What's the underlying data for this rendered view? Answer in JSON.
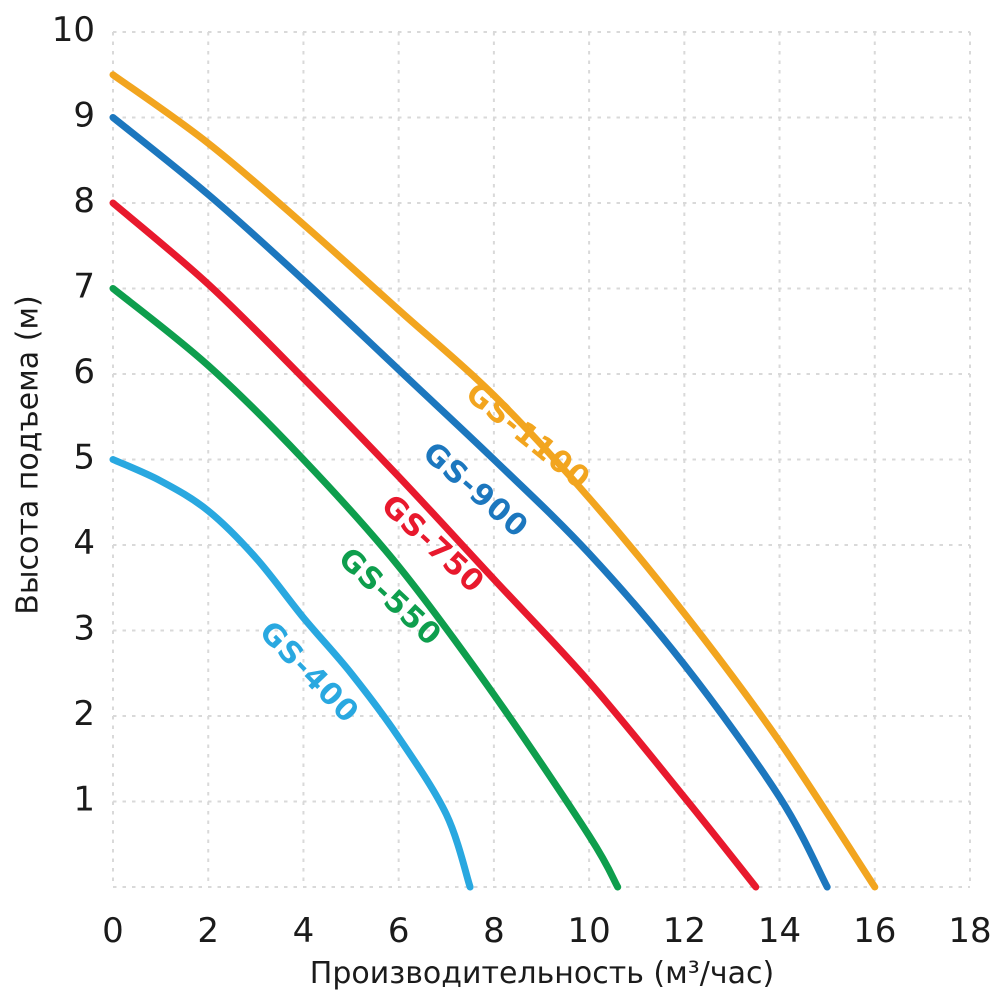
{
  "chart_data": {
    "type": "line",
    "title": "",
    "xlabel": "Производительность (м³/час)",
    "ylabel": "Высота подъема (м)",
    "xlim": [
      0,
      18
    ],
    "ylim": [
      0,
      10
    ],
    "xticks": [
      0,
      2,
      4,
      6,
      8,
      10,
      12,
      14,
      16,
      18
    ],
    "yticks": [
      1,
      2,
      3,
      4,
      5,
      6,
      7,
      8,
      9,
      10
    ],
    "grid": "dashed",
    "grid_color": "#d9d9d9",
    "text_color": "#1b1b1b",
    "background_color": "#ffffff",
    "legend_position": "inline-curve-labels",
    "series": [
      {
        "name": "GS-1100",
        "label": "GS-1100",
        "color": "#f2a51f",
        "points": [
          [
            0,
            9.5
          ],
          [
            2,
            8.7
          ],
          [
            4,
            7.75
          ],
          [
            6,
            6.75
          ],
          [
            8,
            5.75
          ],
          [
            10,
            4.55
          ],
          [
            12,
            3.2
          ],
          [
            14,
            1.7
          ],
          [
            16,
            0
          ]
        ],
        "label_pos": [
          8.7,
          5.26
        ],
        "label_angle": 39
      },
      {
        "name": "GS-900",
        "label": "GS-900",
        "color": "#1c77be",
        "points": [
          [
            0,
            9.0
          ],
          [
            2,
            8.1
          ],
          [
            4,
            7.1
          ],
          [
            6,
            6.05
          ],
          [
            8,
            5.0
          ],
          [
            10,
            3.9
          ],
          [
            12,
            2.6
          ],
          [
            14,
            1.05
          ],
          [
            15,
            0
          ]
        ],
        "label_pos": [
          7.6,
          4.63
        ],
        "label_angle": 41
      },
      {
        "name": "GS-750",
        "label": "GS-750",
        "color": "#e8192d",
        "points": [
          [
            0,
            8.0
          ],
          [
            2,
            7.05
          ],
          [
            4,
            5.95
          ],
          [
            6,
            4.8
          ],
          [
            8,
            3.6
          ],
          [
            10,
            2.4
          ],
          [
            12,
            1.05
          ],
          [
            13.5,
            0
          ]
        ],
        "label_pos": [
          6.7,
          4.0
        ],
        "label_angle": 43
      },
      {
        "name": "GS-550",
        "label": "GS-550",
        "color": "#0e9e4d",
        "points": [
          [
            0,
            7.0
          ],
          [
            2,
            6.1
          ],
          [
            4,
            5.0
          ],
          [
            6,
            3.75
          ],
          [
            8,
            2.25
          ],
          [
            10,
            0.6
          ],
          [
            10.6,
            0
          ]
        ],
        "label_pos": [
          5.8,
          3.38
        ],
        "label_angle": 43
      },
      {
        "name": "GS-400",
        "label": "GS-400",
        "color": "#29a8e0",
        "points": [
          [
            0,
            5.0
          ],
          [
            1,
            4.75
          ],
          [
            2,
            4.4
          ],
          [
            3,
            3.85
          ],
          [
            4,
            3.15
          ],
          [
            5,
            2.5
          ],
          [
            6,
            1.75
          ],
          [
            7,
            0.85
          ],
          [
            7.5,
            0
          ]
        ],
        "label_pos": [
          4.1,
          2.5
        ],
        "label_angle": 46
      }
    ]
  }
}
